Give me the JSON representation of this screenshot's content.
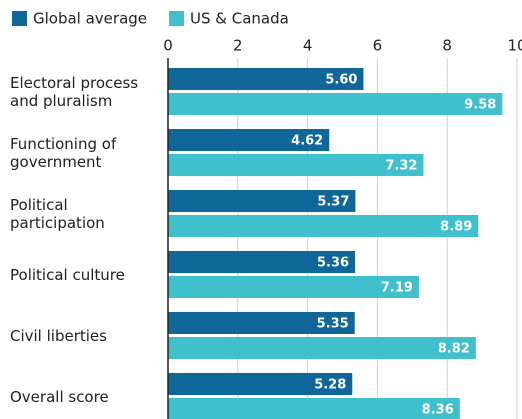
{
  "chart_data": {
    "type": "bar",
    "orientation": "horizontal",
    "categories": [
      "Electoral process\nand pluralism",
      "Functioning of\ngovernment",
      "Political\nparticipation",
      "Political culture",
      "Civil liberties",
      "Overall score"
    ],
    "series": [
      {
        "name": "Global average",
        "color": "#0f6698",
        "values": [
          5.6,
          4.62,
          5.37,
          5.36,
          5.35,
          5.28
        ],
        "value_labels": [
          "5.60",
          "4.62",
          "5.37",
          "5.36",
          "5.35",
          "5.28"
        ]
      },
      {
        "name": "US & Canada",
        "color": "#40bfcc",
        "values": [
          9.58,
          7.32,
          8.89,
          7.19,
          8.82,
          8.36
        ],
        "value_labels": [
          "9.58",
          "7.32",
          "8.89",
          "7.19",
          "8.82",
          "8.36"
        ]
      }
    ],
    "xlim": [
      0,
      10
    ],
    "xticks": [
      0,
      2,
      4,
      6,
      8,
      10
    ],
    "grid": true,
    "legend": "top-left"
  }
}
